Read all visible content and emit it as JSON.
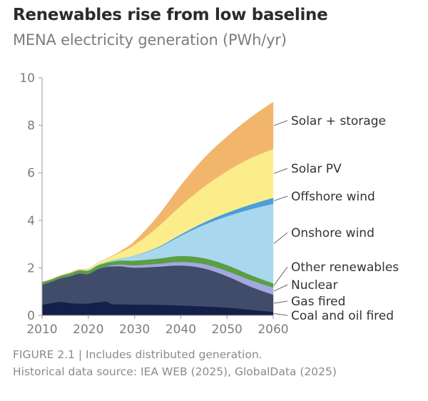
{
  "header": {
    "title": "Renewables rise from low baseline",
    "subtitle": "MENA electricity generation (PWh/yr)"
  },
  "footer": {
    "line1": "FIGURE 2.1 | Includes distributed generation.",
    "line2": "Historical data source: IEA WEB (2025), GlobalData (2025)"
  },
  "chart_data": {
    "type": "area",
    "stacked": true,
    "title": "Renewables rise from low baseline",
    "subtitle": "MENA electricity generation (PWh/yr)",
    "xlabel": "",
    "ylabel": "PWh/yr",
    "xlim": [
      2010,
      2060
    ],
    "ylim": [
      0,
      10
    ],
    "x_ticks": [
      2010,
      2020,
      2030,
      2040,
      2050,
      2060
    ],
    "y_ticks": [
      0,
      2,
      4,
      6,
      8,
      10
    ],
    "grid": false,
    "legend_placement": "right (direct labels)",
    "x": [
      2010,
      2012,
      2014,
      2016,
      2018,
      2020,
      2022,
      2024,
      2025,
      2027,
      2030,
      2035,
      2040,
      2045,
      2050,
      2055,
      2060
    ],
    "series": [
      {
        "name": "Coal and oil fired",
        "color": "#141f4a",
        "values": [
          0.45,
          0.52,
          0.57,
          0.52,
          0.5,
          0.5,
          0.55,
          0.58,
          0.48,
          0.47,
          0.46,
          0.45,
          0.42,
          0.38,
          0.33,
          0.24,
          0.15
        ]
      },
      {
        "name": "Gas fired",
        "color": "#414c6b",
        "values": [
          0.85,
          0.9,
          1.0,
          1.13,
          1.27,
          1.25,
          1.4,
          1.47,
          1.58,
          1.6,
          1.55,
          1.6,
          1.68,
          1.6,
          1.32,
          0.98,
          0.72
        ]
      },
      {
        "name": "Nuclear",
        "color": "#a3a8de",
        "values": [
          0.0,
          0.0,
          0.0,
          0.0,
          0.0,
          0.0,
          0.0,
          0.02,
          0.05,
          0.07,
          0.1,
          0.12,
          0.15,
          0.18,
          0.22,
          0.27,
          0.3
        ]
      },
      {
        "name": "Other renewables",
        "color": "#5a9e45",
        "values": [
          0.1,
          0.1,
          0.1,
          0.12,
          0.13,
          0.14,
          0.15,
          0.15,
          0.15,
          0.17,
          0.2,
          0.22,
          0.25,
          0.25,
          0.25,
          0.22,
          0.18
        ]
      },
      {
        "name": "Onshore wind",
        "color": "#a9d7ed",
        "values": [
          0.0,
          0.0,
          0.0,
          0.01,
          0.01,
          0.02,
          0.03,
          0.04,
          0.06,
          0.1,
          0.2,
          0.45,
          0.85,
          1.4,
          2.05,
          2.75,
          3.35
        ]
      },
      {
        "name": "Offshore wind",
        "color": "#4a9fd9",
        "values": [
          0.0,
          0.0,
          0.0,
          0.0,
          0.0,
          0.0,
          0.0,
          0.0,
          0.0,
          0.0,
          0.01,
          0.03,
          0.06,
          0.1,
          0.15,
          0.2,
          0.25
        ]
      },
      {
        "name": "Solar PV",
        "color": "#fbee8a",
        "values": [
          0.0,
          0.0,
          0.01,
          0.02,
          0.03,
          0.05,
          0.08,
          0.12,
          0.15,
          0.25,
          0.45,
          0.85,
          1.2,
          1.5,
          1.75,
          1.95,
          2.05
        ]
      },
      {
        "name": "Solar + storage",
        "color": "#f1b66c",
        "values": [
          0.0,
          0.0,
          0.0,
          0.0,
          0.0,
          0.0,
          0.0,
          0.01,
          0.02,
          0.05,
          0.15,
          0.45,
          0.85,
          1.2,
          1.45,
          1.7,
          1.98
        ]
      }
    ]
  }
}
